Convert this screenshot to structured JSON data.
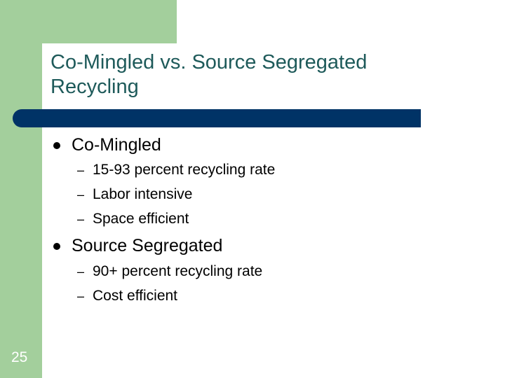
{
  "slide": {
    "title": "Co-Mingled vs. Source Segregated Recycling",
    "page_number": "25",
    "colors": {
      "accent_green": "#a3cf9c",
      "rule_blue": "#003366",
      "title_text": "#1e5a5a"
    },
    "bullets": [
      {
        "label": "Co-Mingled",
        "sub": [
          "15-93 percent recycling rate",
          "Labor intensive",
          "Space efficient"
        ]
      },
      {
        "label": "Source Segregated",
        "sub": [
          "90+ percent recycling rate",
          "Cost efficient"
        ]
      }
    ],
    "sub_marker": "–"
  }
}
